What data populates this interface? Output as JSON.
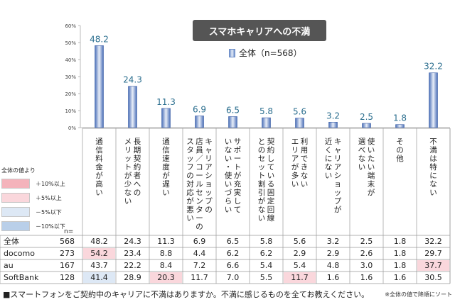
{
  "chart_data": {
    "type": "bar",
    "title": "スマホキャリアへの不満",
    "legend": "全体（n=568）",
    "y_ticks": [
      "0%",
      "10%",
      "20%",
      "30%",
      "40%",
      "50%",
      "60%"
    ],
    "ylim": [
      0,
      60
    ],
    "categories": [
      "通信料金が高い",
      "長期契約者へのメリットが少ない",
      "通信速度が遅い",
      "キャリアショップの店員／コールセンターのスタッフの対応が悪い",
      "サポートが充実していない・使いづらい",
      "契約している固定回線とのセット割引がない",
      "利用できないエリアが多い",
      "キャリアショップが近くにない",
      "使いたい端末が選べない",
      "その他",
      "不満は特にない"
    ],
    "category_columns": [
      [
        "通信料金が高い"
      ],
      [
        "長期契約者への",
        "メリットが少ない"
      ],
      [
        "通信速度が遅い"
      ],
      [
        "キャリアショップの",
        "店員／コールセンターの",
        "スタッフの対応が悪い"
      ],
      [
        "サポートが充実して",
        "いない・使いづらい"
      ],
      [
        "契約している固定回線",
        "とのセット割引がない"
      ],
      [
        "利用できない",
        "エリアが多い"
      ],
      [
        "キャリアショップが",
        "近くにない"
      ],
      [
        "使いたい端末が",
        "選べない"
      ],
      [
        "その他"
      ],
      [
        "不満は特にない"
      ]
    ],
    "values": [
      48.2,
      24.3,
      11.3,
      6.9,
      6.5,
      5.8,
      5.6,
      3.2,
      2.5,
      1.8,
      32.2
    ],
    "value_labels": [
      "48.2",
      "24.3",
      "11.3",
      "6.9",
      "6.5",
      "5.8",
      "5.6",
      "3.2",
      "2.5",
      "1.8",
      "32.2"
    ],
    "bar_color": "#5b7fc4",
    "label_color": "#2c6f8f"
  },
  "table": {
    "n_header": "n=",
    "rows": [
      {
        "label": "全体",
        "n": "568",
        "values": [
          "48.2",
          "24.3",
          "11.3",
          "6.9",
          "6.5",
          "5.8",
          "5.6",
          "3.2",
          "2.5",
          "1.8",
          "32.2"
        ],
        "highlight": [
          null,
          null,
          null,
          null,
          null,
          null,
          null,
          null,
          null,
          null,
          null
        ]
      },
      {
        "label": "docomo",
        "n": "273",
        "values": [
          "54.2",
          "23.4",
          "8.8",
          "4.4",
          "6.2",
          "6.2",
          "2.9",
          "2.9",
          "2.6",
          "1.8",
          "29.7"
        ],
        "highlight": [
          "p5",
          null,
          null,
          null,
          null,
          null,
          null,
          null,
          null,
          null,
          null
        ]
      },
      {
        "label": "au",
        "n": "167",
        "values": [
          "43.7",
          "22.2",
          "8.4",
          "7.2",
          "6.6",
          "5.4",
          "5.4",
          "4.8",
          "3.0",
          "1.8",
          "37.7"
        ],
        "highlight": [
          null,
          null,
          null,
          null,
          null,
          null,
          null,
          null,
          null,
          null,
          "p5"
        ]
      },
      {
        "label": "SoftBank",
        "n": "128",
        "values": [
          "41.4",
          "28.9",
          "20.3",
          "11.7",
          "7.0",
          "5.5",
          "11.7",
          "1.6",
          "1.6",
          "1.6",
          "30.5"
        ],
        "highlight": [
          "m5",
          null,
          "p5",
          null,
          null,
          null,
          "p5",
          null,
          null,
          null,
          null
        ]
      }
    ]
  },
  "highlight_colors": {
    "p10": "#f4b3bb",
    "p5": "#fad7dc",
    "m5": "#dde8f5",
    "m10": "#b9cfe9"
  },
  "legend_box": {
    "title": "全体の値より",
    "items": [
      {
        "key": "p10",
        "label": "＋10%以上"
      },
      {
        "key": "p5",
        "label": "＋5%以上"
      },
      {
        "key": "m5",
        "label": "－5%以下"
      },
      {
        "key": "m10",
        "label": "－10%以下"
      }
    ]
  },
  "footer": {
    "question": "■スマートフォンをご契約中のキャリアに不満はありますか。不満に感じるものを全てお教えください。",
    "note": "※全体の値で降順にソート"
  }
}
